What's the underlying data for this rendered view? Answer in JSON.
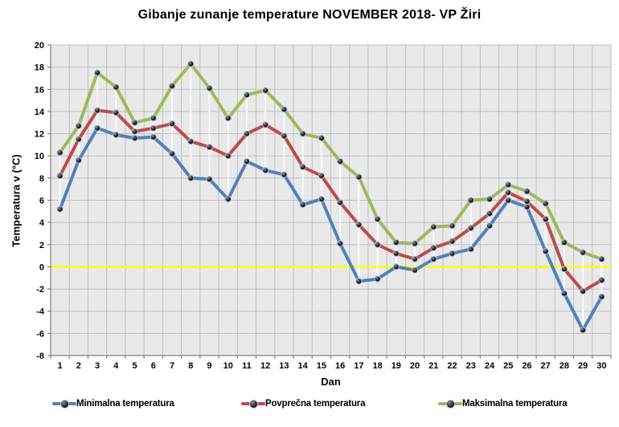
{
  "title": "Gibanje zunanje temperature NOVEMBER 2018- VP Žiri",
  "chart_data": {
    "type": "line",
    "title": "Gibanje zunanje temperature NOVEMBER 2018- VP Žiri",
    "xlabel": "Dan",
    "ylabel": "Temperatura v (°C)",
    "ylim": [
      -8,
      20
    ],
    "yticks": [
      20,
      18,
      16,
      14,
      12,
      10,
      8,
      6,
      4,
      2,
      0,
      -2,
      -4,
      -6,
      -8
    ],
    "categories": [
      1,
      2,
      3,
      4,
      5,
      6,
      7,
      8,
      9,
      10,
      11,
      12,
      13,
      14,
      15,
      16,
      17,
      18,
      19,
      20,
      21,
      22,
      23,
      24,
      25,
      26,
      27,
      28,
      29,
      30
    ],
    "series": [
      {
        "name": "Minimalna temperatura",
        "color": "#4F81BD",
        "values": [
          5.2,
          9.6,
          12.5,
          11.9,
          11.6,
          11.7,
          10.2,
          8.0,
          7.9,
          6.1,
          9.5,
          8.7,
          8.3,
          5.6,
          6.1,
          2.1,
          -1.3,
          -1.1,
          0.0,
          -0.3,
          0.7,
          1.2,
          1.6,
          3.7,
          6.0,
          5.4,
          1.4,
          -2.4,
          -5.7,
          -2.7
        ]
      },
      {
        "name": "Povprečna temperatura",
        "color": "#BE4B48",
        "values": [
          8.2,
          11.5,
          14.1,
          13.9,
          12.2,
          12.5,
          12.9,
          11.3,
          10.8,
          10.0,
          12.0,
          12.8,
          11.8,
          9.0,
          8.2,
          5.8,
          3.8,
          2.0,
          1.2,
          0.7,
          1.7,
          2.3,
          3.5,
          4.8,
          6.7,
          5.9,
          4.3,
          -0.2,
          -2.2,
          -1.2
        ]
      },
      {
        "name": "Maksimalna temperatura",
        "color": "#9BBB59",
        "values": [
          10.3,
          12.7,
          17.5,
          16.2,
          13.0,
          13.4,
          16.3,
          18.3,
          16.1,
          13.4,
          15.5,
          15.9,
          14.2,
          12.0,
          11.6,
          9.5,
          8.1,
          4.3,
          2.2,
          2.1,
          3.6,
          3.7,
          6.0,
          6.1,
          7.4,
          6.8,
          5.7,
          2.2,
          1.3,
          0.7
        ]
      }
    ],
    "grid": true,
    "legend_position": "bottom",
    "plot_bg": "#E9E9E9",
    "grid_color": "#BFBFBF",
    "axis_color": "#808080",
    "zero_line_color": "#FFFF00",
    "high_low_line_color": "#FFFFFF",
    "marker_rim_color": "#A9C0DC"
  }
}
